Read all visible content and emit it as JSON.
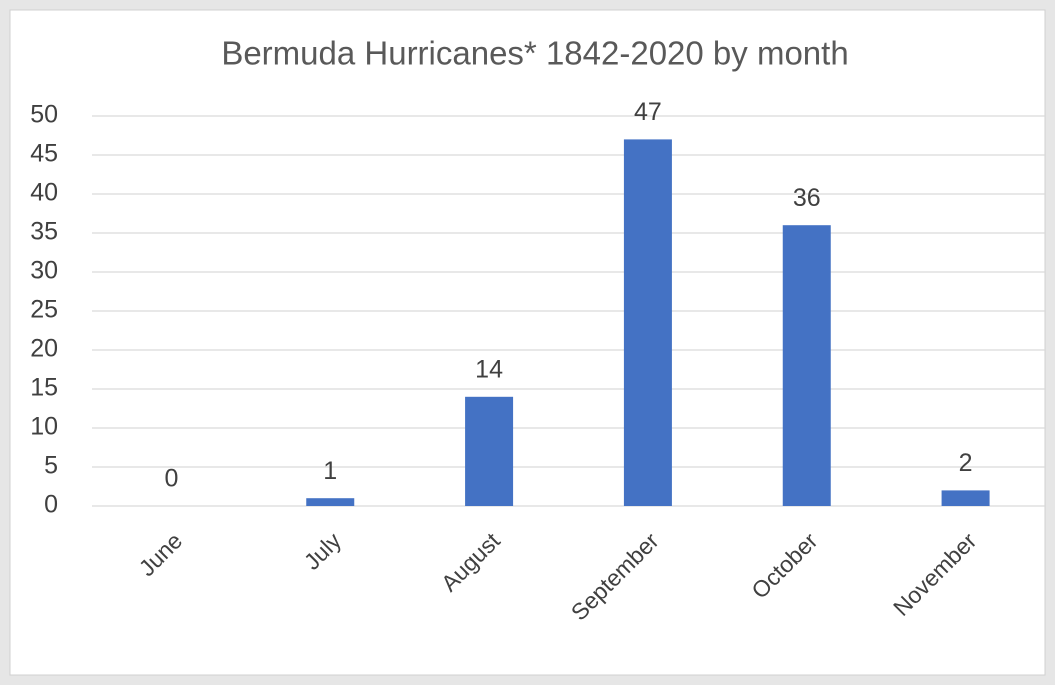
{
  "chart_data": {
    "type": "bar",
    "title": "Bermuda Hurricanes* 1842-2020 by month",
    "categories": [
      "June",
      "July",
      "August",
      "September",
      "October",
      "November"
    ],
    "values": [
      0,
      1,
      14,
      47,
      36,
      2
    ],
    "color": "#4472c4",
    "ylim": [
      0,
      50
    ],
    "yticks": [
      0,
      5,
      10,
      15,
      20,
      25,
      30,
      35,
      40,
      45,
      50
    ],
    "grid": true
  }
}
